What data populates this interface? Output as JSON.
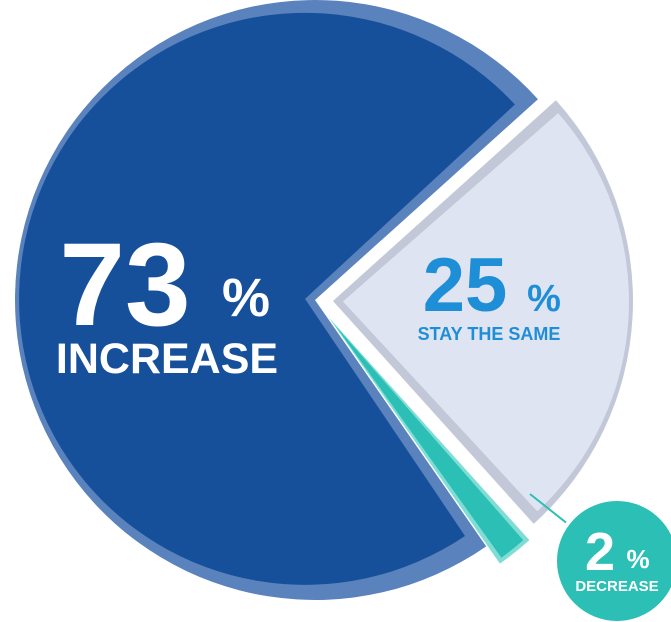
{
  "chart_data": {
    "type": "pie",
    "title": "",
    "legend": "none",
    "slices": [
      {
        "key": "increase",
        "value": 73,
        "value_label": "73",
        "percent_sign": "%",
        "label": "INCREASE",
        "color": "#16509b",
        "edge_color": "#5a82bd"
      },
      {
        "key": "stay",
        "value": 25,
        "value_label": "25",
        "percent_sign": "%",
        "label": "STAY THE SAME",
        "color": "#dfe4f3",
        "edge_color": "#c3c8d8",
        "text_color": "#1e8ed6"
      },
      {
        "key": "decrease",
        "value": 2,
        "value_label": "2",
        "percent_sign": "%",
        "label": "DECREASE",
        "color": "#2bbfb5",
        "edge_color": "#7fddd6",
        "text_color": "#ffffff"
      }
    ]
  }
}
